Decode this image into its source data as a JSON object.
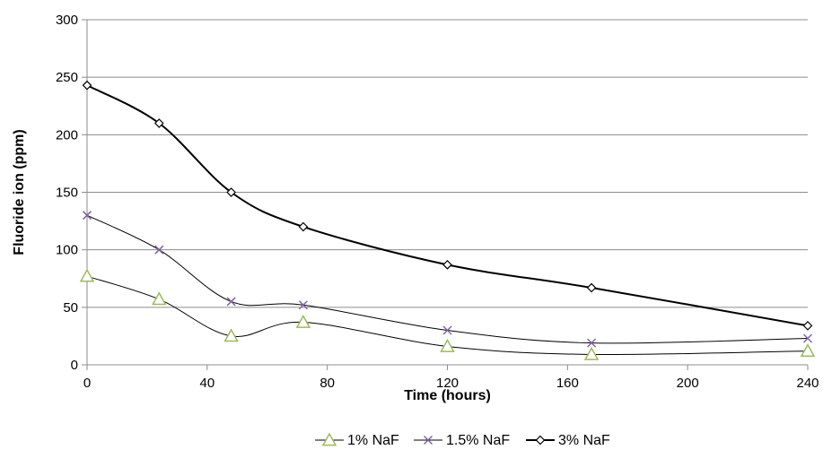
{
  "chart_data": {
    "type": "line",
    "title": "",
    "xlabel": "Time (hours)",
    "ylabel": "Fluoride ion (ppm)",
    "xlim": [
      0,
      240
    ],
    "ylim": [
      0,
      300
    ],
    "x_ticks": [
      0,
      40,
      80,
      120,
      160,
      200,
      240
    ],
    "y_ticks": [
      0,
      50,
      100,
      150,
      200,
      250,
      300
    ],
    "grid": "horizontal",
    "legend_position": "bottom",
    "series": [
      {
        "name": "1% NaF",
        "marker": "triangle",
        "color": "#9bbb59",
        "line_color": "#000000",
        "x": [
          0,
          24,
          48,
          72,
          120,
          168,
          240
        ],
        "values": [
          77,
          57,
          25,
          37,
          16,
          9,
          12
        ]
      },
      {
        "name": "1.5% NaF",
        "marker": "x",
        "color": "#8064a2",
        "line_color": "#000000",
        "x": [
          0,
          24,
          48,
          72,
          120,
          168,
          240
        ],
        "values": [
          130,
          100,
          55,
          52,
          30,
          19,
          23
        ]
      },
      {
        "name": "3% NaF",
        "marker": "diamond",
        "color": "#000000",
        "line_color": "#000000",
        "x": [
          0,
          24,
          48,
          72,
          120,
          168,
          240
        ],
        "values": [
          243,
          210,
          150,
          120,
          87,
          67,
          34
        ]
      }
    ]
  }
}
